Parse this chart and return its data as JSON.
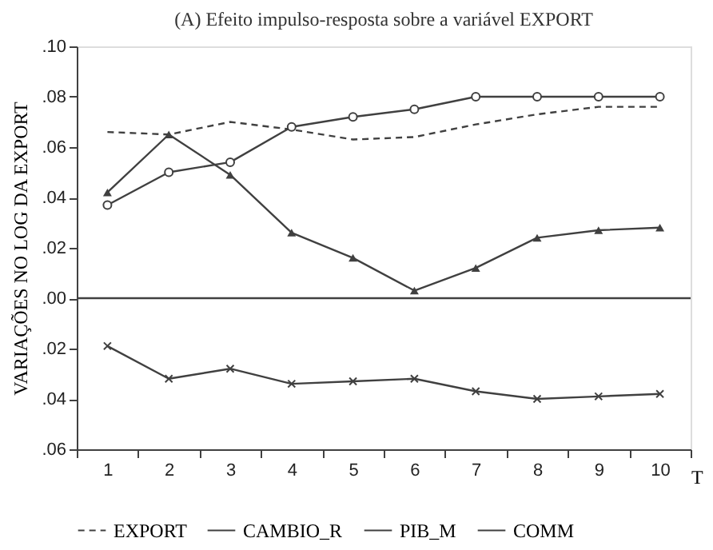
{
  "chart_data": {
    "type": "line",
    "title": "(A) Efeito impulso-resposta sobre a variável EXPORT",
    "xlabel": "T",
    "ylabel": "VARIAÇÕES NO LOG DA EXPORT",
    "categories": [
      "1",
      "2",
      "3",
      "4",
      "5",
      "6",
      "7",
      "8",
      "9",
      "10"
    ],
    "series": [
      {
        "name": "EXPORT",
        "color": "#404040",
        "line_style": "dashed",
        "marker": "none",
        "values": [
          0.066,
          0.065,
          0.07,
          0.067,
          0.063,
          0.064,
          0.069,
          0.073,
          0.076,
          0.076
        ]
      },
      {
        "name": "CAMBIO_R",
        "color": "#404040",
        "line_style": "solid",
        "marker": "cross",
        "values": [
          -0.019,
          -0.032,
          -0.028,
          -0.034,
          -0.033,
          -0.032,
          -0.037,
          -0.04,
          -0.039,
          -0.038
        ]
      },
      {
        "name": "PIB_M",
        "color": "#404040",
        "line_style": "solid",
        "marker": "circle",
        "values": [
          0.037,
          0.05,
          0.054,
          0.068,
          0.072,
          0.075,
          0.08,
          0.08,
          0.08,
          0.08
        ]
      },
      {
        "name": "COMM",
        "color": "#404040",
        "line_style": "solid",
        "marker": "triangle",
        "values": [
          0.042,
          0.065,
          0.049,
          0.026,
          0.016,
          0.003,
          0.012,
          0.024,
          0.027,
          0.028
        ]
      }
    ],
    "ylim": [
      -0.06,
      0.1
    ],
    "yticks": [
      {
        "value": 0.1,
        "label": ".10"
      },
      {
        "value": 0.08,
        "label": ".08"
      },
      {
        "value": 0.06,
        "label": ".06"
      },
      {
        "value": 0.04,
        "label": ".04"
      },
      {
        "value": 0.02,
        "label": ".02"
      },
      {
        "value": 0.0,
        "label": ".00"
      },
      {
        "value": -0.02,
        "label": ".02"
      },
      {
        "value": -0.04,
        "label": ".04"
      },
      {
        "value": -0.06,
        "label": ".06"
      }
    ],
    "ref_lines": [
      {
        "axis": "y",
        "value": 0
      }
    ],
    "grid": false,
    "legend": "bottom"
  }
}
